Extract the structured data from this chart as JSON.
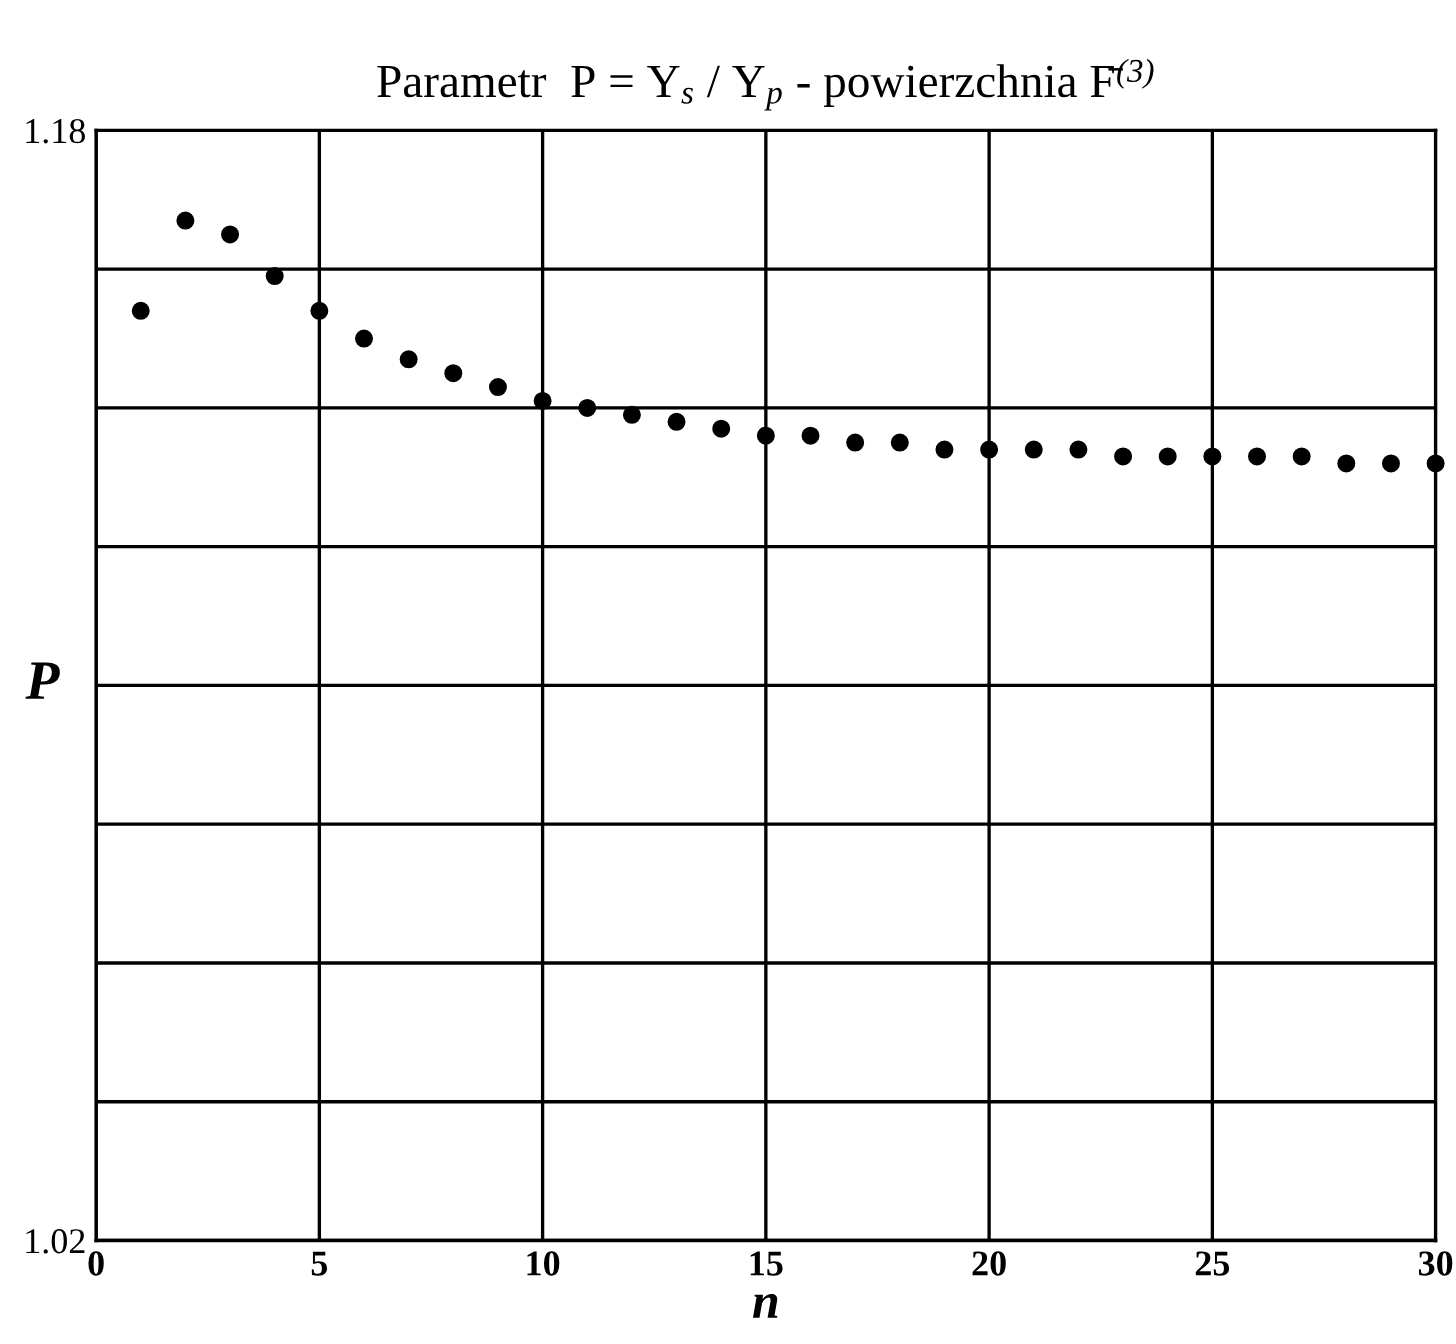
{
  "chart_data": {
    "type": "scatter",
    "title": "Parametr  P = Y$_{s}$ / Y$_{p}$ - powierzchnia F̄$^{(3)}$",
    "xlabel": "n",
    "ylabel": "P",
    "x": [
      1,
      2,
      3,
      4,
      5,
      6,
      7,
      8,
      9,
      10,
      11,
      12,
      13,
      14,
      15,
      16,
      17,
      18,
      19,
      20,
      21,
      22,
      23,
      24,
      25,
      26,
      27,
      28,
      29,
      30
    ],
    "series": [
      {
        "color": "#000000",
        "values": [
          1.154,
          1.167,
          1.165,
          1.159,
          1.154,
          1.15,
          1.147,
          1.145,
          1.143,
          1.141,
          1.14,
          1.139,
          1.138,
          1.137,
          1.136,
          1.136,
          1.135,
          1.135,
          1.134,
          1.134,
          1.134,
          1.134,
          1.133,
          1.133,
          1.133,
          1.133,
          1.133,
          1.132,
          1.132,
          1.132
        ]
      }
    ],
    "xlim": [
      0,
      30
    ],
    "xticks": [
      0,
      5,
      10,
      15,
      20,
      25,
      30
    ],
    "ylim": [
      1.02,
      1.18
    ],
    "yticks": [
      1.02,
      {
        "value": 1.04,
        "label": null
      },
      {
        "value": 1.06,
        "label": null
      },
      {
        "value": 1.08,
        "label": null
      },
      {
        "value": 1.1,
        "label": null
      },
      {
        "value": 1.12,
        "label": null
      },
      {
        "value": 1.14,
        "label": null
      },
      {
        "value": 1.16,
        "label": null
      },
      1.18
    ],
    "grid": true,
    "marker": "circle"
  }
}
